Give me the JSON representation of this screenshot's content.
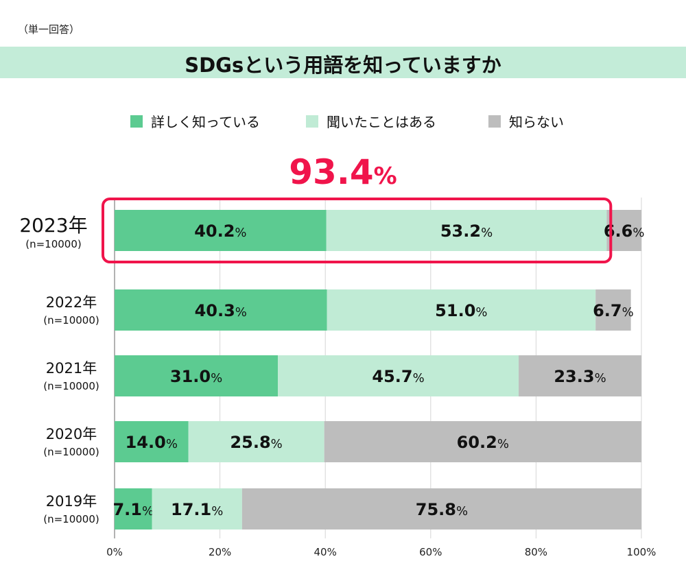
{
  "note": "（単一回答）",
  "title": "SDGsという用語を知っていますか",
  "highlight": {
    "value": "93.4",
    "unit": "%",
    "color": "#f0144b"
  },
  "chart_data": {
    "type": "bar",
    "orientation": "horizontal",
    "stacked": true,
    "categories": [
      "2023年",
      "2022年",
      "2021年",
      "2020年",
      "2019年"
    ],
    "category_sublabels": [
      "(n=10000)",
      "(n=10000)",
      "(n=10000)",
      "(n=10000)",
      "(n=10000)"
    ],
    "series": [
      {
        "name": "詳しく知っている",
        "color": "#5ccb91",
        "values": [
          40.2,
          40.3,
          31.0,
          14.0,
          7.1
        ]
      },
      {
        "name": "聞いたことはある",
        "color": "#c0ebd5",
        "values": [
          53.2,
          51.0,
          45.7,
          25.8,
          17.1
        ]
      },
      {
        "name": "知らない",
        "color": "#bdbdbd",
        "values": [
          6.6,
          6.7,
          23.3,
          60.2,
          75.8
        ]
      }
    ],
    "xlim": [
      0,
      100
    ],
    "xticks": [
      "0%",
      "20%",
      "40%",
      "60%",
      "80%",
      "100%"
    ],
    "grid": true,
    "legend": "top"
  }
}
